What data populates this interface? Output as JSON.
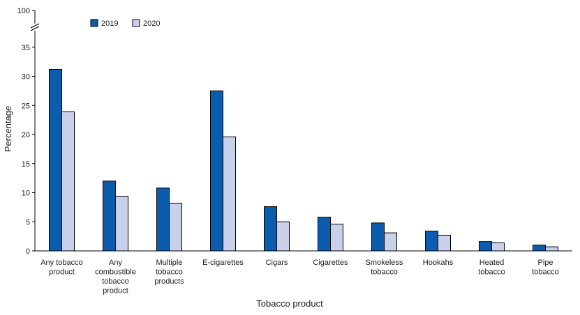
{
  "chart_data": {
    "type": "bar",
    "xlabel": "Tobacco product",
    "ylabel": "Percentage",
    "categories": [
      [
        "Any tobacco",
        "product"
      ],
      [
        "Any",
        "combustible",
        "tobacco",
        "product"
      ],
      [
        "Multiple",
        "tobacco",
        "products"
      ],
      [
        "E-cigarettes"
      ],
      [
        "Cigars"
      ],
      [
        "Cigarettes"
      ],
      [
        "Smokeless",
        "tobacco"
      ],
      [
        "Hookahs"
      ],
      [
        "Heated",
        "tobacco"
      ],
      [
        "Pipe",
        "tobacco"
      ]
    ],
    "series": [
      {
        "name": "2019",
        "color": "#0b5cad",
        "values": [
          31.2,
          12.0,
          10.8,
          27.5,
          7.6,
          5.8,
          4.8,
          3.4,
          1.6,
          1.0
        ]
      },
      {
        "name": "2020",
        "color": "#c9d0ea",
        "values": [
          23.9,
          9.4,
          8.2,
          19.6,
          5.0,
          4.6,
          3.1,
          2.7,
          1.4,
          0.7
        ]
      }
    ],
    "yticks": [
      0,
      5,
      10,
      15,
      20,
      25,
      30,
      35,
      100
    ],
    "ylim": [
      0,
      100
    ],
    "axis_break": {
      "from": 35,
      "to": 100
    },
    "grid": false,
    "legend_position": "top-left"
  }
}
